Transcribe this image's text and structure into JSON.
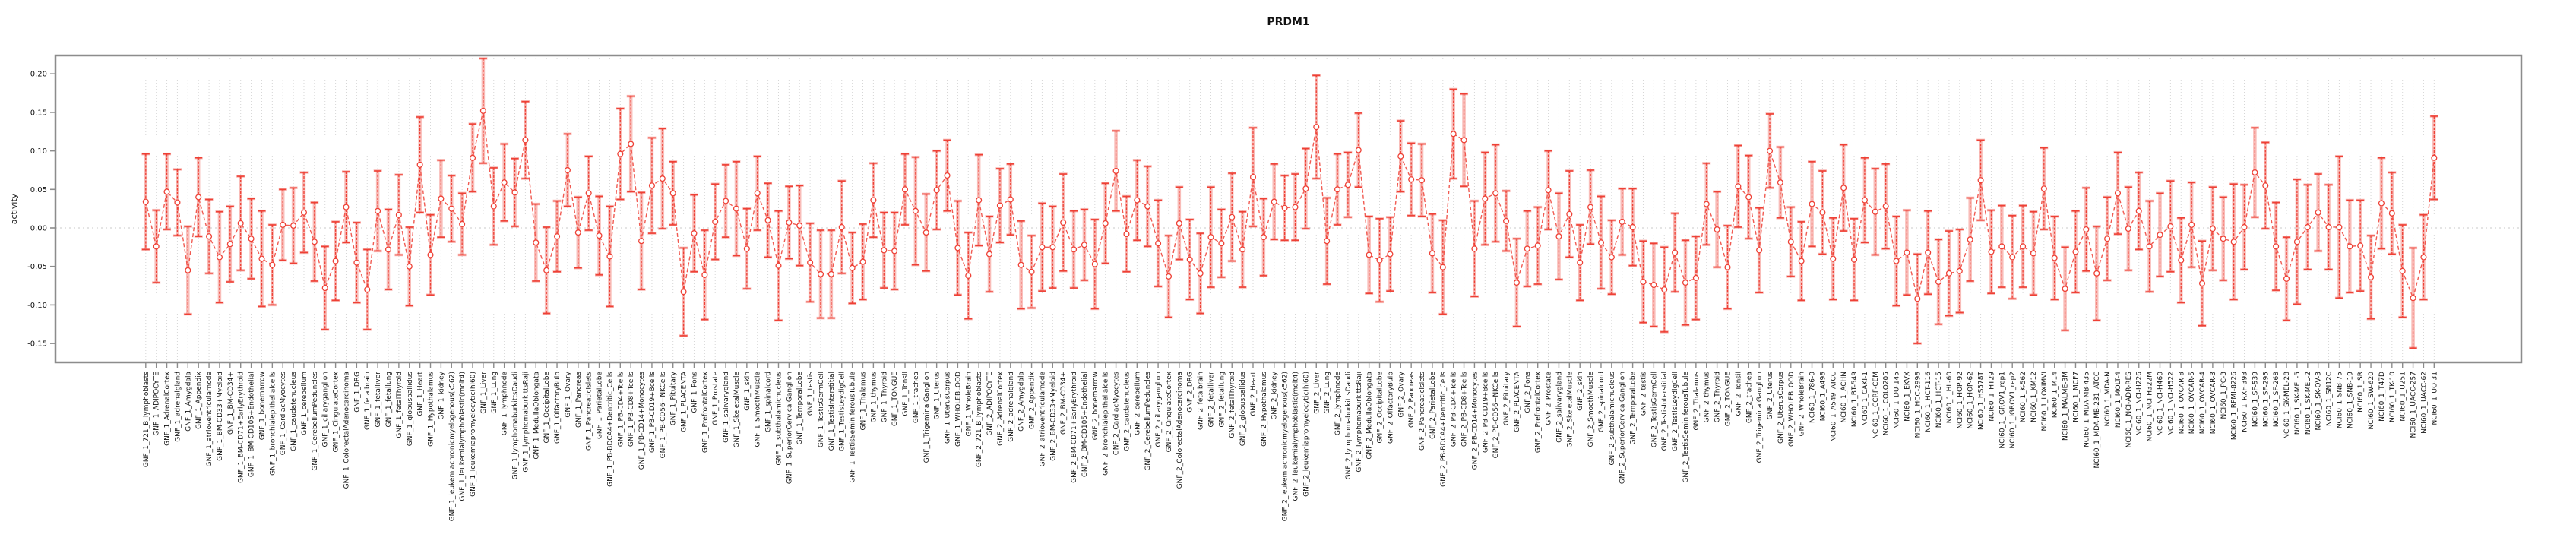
{
  "title": "PRDM1",
  "axes": {
    "ylabel": "activity",
    "ytick_labels": [
      "0.20",
      "0.15",
      "0.10",
      "0.05",
      "0.00",
      "-0.05",
      "-0.10",
      "-0.15"
    ]
  },
  "colors": {
    "point_stroke": "#ee4035",
    "line": "#f15b52",
    "band": "rgba(238,64,53,0.35)",
    "grid": "#d6d6d6",
    "zero_line": "#c8c8c8",
    "frame": "#8c8c8c",
    "text": "#111111"
  },
  "chart_data": {
    "type": "scatter",
    "title": "PRDM1",
    "xlabel": "",
    "ylabel": "activity",
    "ylim": [
      -0.17,
      0.23
    ],
    "yticks": [
      0.2,
      0.15,
      0.1,
      0.05,
      0.0,
      -0.05,
      -0.1,
      -0.15
    ],
    "grid": "vertical dotted gridline at every category; horizontal dotted line at y=0 only",
    "legend_position": "none",
    "point_style": "open red circles with dashed red error bars (caps) over translucent thick pink error bands, connected by thin red line",
    "categories": [
      "GNF_1_721_B_lymphoblasts",
      "GNF_1_ADIPOCYTE",
      "GNF_1_AdrenalCortex",
      "GNF_1_adrenalgland",
      "GNF_1_Amygdala",
      "GNF_1_Appendix",
      "GNF_1_atrioventricularnode",
      "GNF_1_BM-CD33+Myeloid",
      "GNF_1_BM-CD34+",
      "GNF_1_BM-CD71+EarlyErythroid",
      "GNF_1_BM-CD105+Endothelial",
      "GNF_1_bonemarrow",
      "GNF_1_bronchialepithelialcells",
      "GNF_1_CardiacMyocytes",
      "GNF_1_caudatenucleus",
      "GNF_1_cerebellum",
      "GNF_1_CerebellumPeduncles",
      "GNF_1_ciliaryganglion",
      "GNF_1_CingulateCortex",
      "GNF_1_ColorectalAdenocarcinoma",
      "GNF_1_DRG",
      "GNF_1_fetalbrain",
      "GNF_1_fetalliver",
      "GNF_1_fetallung",
      "GNF_1_fetalThyroid",
      "GNF_1_globuspallidus",
      "GNF_1_Heart",
      "GNF_1_Hypothalamus",
      "GNF_1_kidney",
      "GNF_1_leukemiachronicmyelogenous(k562)",
      "GNF_1_leukemialymphoblastic(molt4)",
      "GNF_1_leukemiapromyelocytic(hl60)",
      "GNF_1_Liver",
      "GNF_1_Lung",
      "GNF_1_lymphnode",
      "GNF_1_lymphomaburkittsDaudi",
      "GNF_1_lymphomaburkittsRaji",
      "GNF_1_MedullaOblongata",
      "GNF_1_OccipitalLobe",
      "GNF_1_OlfactoryBulb",
      "GNF_1_Ovary",
      "GNF_1_Pancreas",
      "GNF_1_PancreaticIslets",
      "GNF_1_ParietalLobe",
      "GNF_1_PB-BDCA4+Dentritic_Cells",
      "GNF_1_PB-CD4+Tcells",
      "GNF_1_PB-CD8+Tcells",
      "GNF_1_PB-CD14+Monocytes",
      "GNF_1_PB-CD19+Bcells",
      "GNF_1_PB-CD56+NKCells",
      "GNF_1_Pituitary",
      "GNF_1_PLACENTA",
      "GNF_1_Pons",
      "GNF_1_PrefrontalCortex",
      "GNF_1_Prostate",
      "GNF_1_salivarygland",
      "GNF_1_SkeletalMuscle",
      "GNF_1_skin",
      "GNF_1_SmoothMuscle",
      "GNF_1_spinalcord",
      "GNF_1_subthalamicnucleus",
      "GNF_1_SuperiorCervicalGanglion",
      "GNF_1_TemporalLobe",
      "GNF_1_testis",
      "GNF_1_TestisGermCell",
      "GNF_1_TestisInterstitial",
      "GNF_1_TestisLeydigCell",
      "GNF_1_TestisSeminiferousTubule",
      "GNF_1_Thalamus",
      "GNF_1_thymus",
      "GNF_1_Thyroid",
      "GNF_1_TONGUE",
      "GNF_1_Tonsil",
      "GNF_1_trachea",
      "GNF_1_TrigeminalGanglion",
      "GNF_1_Uterus",
      "GNF_1_UterusCorpus",
      "GNF_1_WHOLEBLOOD",
      "GNF_1_WholeBrain",
      "GNF_2_721_B_lymphoblasts",
      "GNF_2_ADIPOCYTE",
      "GNF_2_AdrenalCortex",
      "GNF_2_adrenalgland",
      "GNF_2_Amygdala",
      "GNF_2_Appendix",
      "GNF_2_atrioventricularnode",
      "GNF_2_BM-CD33+Myeloid",
      "GNF_2_BM-CD34+",
      "GNF_2_BM-CD71+EarlyErythroid",
      "GNF_2_BM-CD105+Endothelial",
      "GNF_2_bonemarrow",
      "GNF_2_bronchialepithelialcells",
      "GNF_2_CardiacMyocytes",
      "GNF_2_caudatenucleus",
      "GNF_2_cerebellum",
      "GNF_2_CerebellumPeduncles",
      "GNF_2_ciliaryganglion",
      "GNF_2_CingulateCortex",
      "GNF_2_ColorectalAdenocarcinoma",
      "GNF_2_DRG",
      "GNF_2_fetalbrain",
      "GNF_2_fetalliver",
      "GNF_2_fetallung",
      "GNF_2_fetalThyroid",
      "GNF_2_globuspallidus",
      "GNF_2_Heart",
      "GNF_2_Hypothalamus",
      "GNF_2_kidney",
      "GNF_2_leukemiachronicmyelogenous(k562)",
      "GNF_2_leukemialymphoblastic(molt4)",
      "GNF_2_leukemiapromyelocytic(hl60)",
      "GNF_2_Liver",
      "GNF_2_Lung",
      "GNF_2_lymphnode",
      "GNF_2_lymphomaburkittsDaudi",
      "GNF_2_lymphomaburkittsRaji",
      "GNF_2_MedullaOblongata",
      "GNF_2_OccipitalLobe",
      "GNF_2_OlfactoryBulb",
      "GNF_2_Ovary",
      "GNF_2_Pancreas",
      "GNF_2_PancreaticIslets",
      "GNF_2_ParietalLobe",
      "GNF_2_PB-BDCA4+Dentritic_Cells",
      "GNF_2_PB-CD4+Tcells",
      "GNF_2_PB-CD8+Tcells",
      "GNF_2_PB-CD14+Monocytes",
      "GNF_2_PB-CD19+Bcells",
      "GNF_2_PB-CD56+NKCells",
      "GNF_2_Pituitary",
      "GNF_2_PLACENTA",
      "GNF_2_Pons",
      "GNF_2_PrefrontalCortex",
      "GNF_2_Prostate",
      "GNF_2_salivarygland",
      "GNF_2_SkeletalMuscle",
      "GNF_2_skin",
      "GNF_2_SmoothMuscle",
      "GNF_2_spinalcord",
      "GNF_2_subthalamicnucleus",
      "GNF_2_SuperiorCervicalGanglion",
      "GNF_2_TemporalLobe",
      "GNF_2_testis",
      "GNF_2_TestisGermCell",
      "GNF_2_TestisInterstitial",
      "GNF_2_TestisLeydigCell",
      "GNF_2_TestisSeminiferousTubule",
      "GNF_2_Thalamus",
      "GNF_2_thymus",
      "GNF_2_Thyroid",
      "GNF_2_TONGUE",
      "GNF_2_Tonsil",
      "GNF_2_trachea",
      "GNF_2_TrigeminalGanglion",
      "GNF_2_Uterus",
      "GNF_2_UterusCorpus",
      "GNF_2_WHOLEBLOOD",
      "GNF_2_WholeBrain",
      "NCI60_1_786-0",
      "NCI60_1_A498",
      "NCI60_1_A549_ATCC",
      "NCI60_1_ACHN",
      "NCI60_1_BT-549",
      "NCI60_1_CAKI-1",
      "NCI60_1_CCRF-CEM",
      "NCI60_1_COLO205",
      "NCI60_1_DU-145",
      "NCI60_1_EKVX",
      "NCI60_1_HCC-2998",
      "NCI60_1_HCT-116",
      "NCI60_1_HCT-15",
      "NCI60_1_HL-60",
      "NCI60_1_HOP-92",
      "NCI60_1_HOP-62",
      "NCI60_1_HS578T",
      "NCI60_1_HT29",
      "NCI60_1_IGROV1_rep1",
      "NCI60_1_IGROV1_rep2",
      "NCI60_1_K-562",
      "NCI60_1_KM12",
      "NCI60_1_LOXIMVI",
      "NCI60_1_M14",
      "NCI60_1_MALME-3M",
      "NCI60_1_MCF7",
      "NCI60_1_MDA-MB-435",
      "NCI60_1_MDA-MB-231_ATCC",
      "NCI60_1_MDA-N",
      "NCI60_1_MOLT-4",
      "NCI60_1_NCI-ADR-RES",
      "NCI60_1_NCI-H226",
      "NCI60_1_NCI-H322M",
      "NCI60_1_NCI-H460",
      "NCI60_1_NCI-H522",
      "NCI60_1_OVCAR-8",
      "NCI60_1_OVCAR-5",
      "NCI60_1_OVCAR-4",
      "NCI60_1_OVCAR-3",
      "NCI60_1_PC-3",
      "NCI60_1_RPMI-8226",
      "NCI60_1_RXF-393",
      "NCI60_1_SF-539",
      "NCI60_1_SF-295",
      "NCI60_1_SF-268",
      "NCI60_1_SK-MEL-28",
      "NCI60_1_SK-MEL-5",
      "NCI60_1_SK-MEL-2",
      "NCI60_1_SK-OV-3",
      "NCI60_1_SN12C",
      "NCI60_1_SNB-75",
      "NCI60_1_SNB-19",
      "NCI60_1_SR",
      "NCI60_1_SW-620",
      "NCI60_1_T47D",
      "NCI60_1_TK-10",
      "NCI60_1_U251",
      "NCI60_1_UACC-257",
      "NCI60_1_UACC-62",
      "NCI60_1_UO-31"
    ],
    "values": [
      0.034,
      -0.024,
      0.047,
      0.033,
      -0.055,
      0.04,
      -0.011,
      -0.038,
      -0.021,
      0.006,
      -0.014,
      -0.04,
      -0.048,
      0.004,
      0.003,
      0.02,
      -0.018,
      -0.078,
      -0.043,
      0.027,
      -0.045,
      -0.08,
      0.022,
      -0.028,
      0.017,
      -0.05,
      0.082,
      -0.035,
      0.038,
      0.025,
      0.005,
      0.091,
      0.152,
      0.028,
      0.059,
      0.046,
      0.114,
      -0.019,
      -0.055,
      -0.011,
      0.075,
      -0.006,
      0.045,
      -0.01,
      -0.037,
      0.096,
      0.109,
      -0.017,
      0.055,
      0.064,
      0.045,
      -0.083,
      -0.007,
      -0.061,
      0.008,
      0.035,
      0.025,
      -0.027,
      0.045,
      0.01,
      -0.049,
      0.007,
      0.003,
      -0.045,
      -0.06,
      -0.06,
      0.001,
      -0.052,
      -0.044,
      0.036,
      -0.029,
      -0.03,
      0.05,
      0.022,
      -0.006,
      0.049,
      0.068,
      -0.026,
      -0.062,
      0.036,
      -0.034,
      0.029,
      0.037,
      -0.048,
      -0.057,
      -0.025,
      -0.025,
      0.007,
      -0.028,
      -0.022,
      -0.047,
      0.006,
      0.074,
      -0.008,
      0.036,
      0.028,
      -0.02,
      -0.063,
      0.006,
      -0.041,
      -0.059,
      -0.012,
      -0.02,
      0.014,
      -0.028,
      0.066,
      -0.012,
      0.034,
      0.026,
      0.027,
      0.051,
      0.131,
      -0.017,
      0.05,
      0.056,
      0.101,
      -0.035,
      -0.042,
      -0.034,
      0.093,
      0.063,
      0.062,
      -0.033,
      -0.051,
      0.122,
      0.114,
      -0.027,
      0.038,
      0.045,
      0.009,
      -0.071,
      -0.027,
      -0.023,
      0.049,
      -0.011,
      0.018,
      -0.045,
      0.027,
      -0.019,
      -0.038,
      0.008,
      0.001,
      -0.07,
      -0.074,
      -0.08,
      -0.032,
      -0.071,
      -0.065,
      0.031,
      -0.002,
      -0.051,
      0.054,
      0.04,
      -0.029,
      0.1,
      0.059,
      -0.018,
      -0.043,
      0.031,
      0.02,
      -0.04,
      0.052,
      -0.041,
      0.036,
      0.021,
      0.028,
      -0.043,
      -0.032,
      -0.092,
      -0.032,
      -0.07,
      -0.059,
      -0.056,
      -0.015,
      0.062,
      -0.031,
      -0.024,
      -0.038,
      -0.024,
      -0.033,
      0.051,
      -0.039,
      -0.079,
      -0.031,
      -0.002,
      -0.059,
      -0.014,
      0.045,
      -0.001,
      0.022,
      -0.024,
      -0.009,
      0.002,
      -0.042,
      0.004,
      -0.072,
      -0.001,
      -0.014,
      -0.018,
      0.001,
      0.072,
      0.055,
      -0.024,
      -0.066,
      -0.018,
      0.001,
      0.02,
      0.001,
      0.001,
      -0.024,
      -0.023,
      -0.064,
      0.032,
      0.019,
      -0.056,
      -0.091,
      -0.038,
      0.091
    ],
    "errors": [
      0.062,
      0.047,
      0.049,
      0.043,
      0.057,
      0.051,
      0.048,
      0.059,
      0.049,
      0.061,
      0.052,
      0.062,
      0.052,
      0.046,
      0.049,
      0.052,
      0.051,
      0.054,
      0.051,
      0.046,
      0.052,
      0.052,
      0.052,
      0.052,
      0.052,
      0.051,
      0.062,
      0.052,
      0.05,
      0.043,
      0.04,
      0.044,
      0.068,
      0.05,
      0.05,
      0.044,
      0.05,
      0.05,
      0.056,
      0.046,
      0.047,
      0.046,
      0.048,
      0.051,
      0.065,
      0.059,
      0.062,
      0.063,
      0.062,
      0.065,
      0.041,
      0.057,
      0.05,
      0.058,
      0.049,
      0.047,
      0.061,
      0.052,
      0.048,
      0.048,
      0.071,
      0.047,
      0.052,
      0.051,
      0.057,
      0.057,
      0.06,
      0.046,
      0.049,
      0.048,
      0.049,
      0.05,
      0.046,
      0.07,
      0.05,
      0.051,
      0.046,
      0.061,
      0.056,
      0.059,
      0.049,
      0.048,
      0.046,
      0.057,
      0.047,
      0.057,
      0.053,
      0.063,
      0.05,
      0.046,
      0.058,
      0.052,
      0.052,
      0.049,
      0.052,
      0.052,
      0.056,
      0.053,
      0.047,
      0.052,
      0.052,
      0.065,
      0.044,
      0.057,
      0.049,
      0.064,
      0.05,
      0.049,
      0.042,
      0.043,
      0.052,
      0.067,
      0.056,
      0.046,
      0.042,
      0.048,
      0.05,
      0.054,
      0.048,
      0.046,
      0.047,
      0.047,
      0.051,
      0.061,
      0.058,
      0.06,
      0.062,
      0.06,
      0.063,
      0.039,
      0.057,
      0.049,
      0.05,
      0.051,
      0.056,
      0.056,
      0.049,
      0.048,
      0.06,
      0.048,
      0.043,
      0.05,
      0.053,
      0.054,
      0.055,
      0.051,
      0.055,
      0.054,
      0.053,
      0.049,
      0.054,
      0.053,
      0.054,
      0.055,
      0.048,
      0.046,
      0.045,
      0.051,
      0.055,
      0.054,
      0.053,
      0.056,
      0.053,
      0.055,
      0.056,
      0.055,
      0.058,
      0.055,
      0.058,
      0.054,
      0.055,
      0.055,
      0.054,
      0.054,
      0.052,
      0.054,
      0.053,
      0.054,
      0.053,
      0.054,
      0.053,
      0.054,
      0.054,
      0.053,
      0.054,
      0.061,
      0.054,
      0.053,
      0.054,
      0.05,
      0.059,
      0.054,
      0.059,
      0.055,
      0.055,
      0.055,
      0.054,
      0.054,
      0.075,
      0.055,
      0.058,
      0.056,
      0.057,
      0.054,
      0.081,
      0.055,
      0.05,
      0.055,
      0.092,
      0.06,
      0.059,
      0.054,
      0.059,
      0.053,
      0.06,
      0.065,
      0.055,
      0.054
    ]
  }
}
